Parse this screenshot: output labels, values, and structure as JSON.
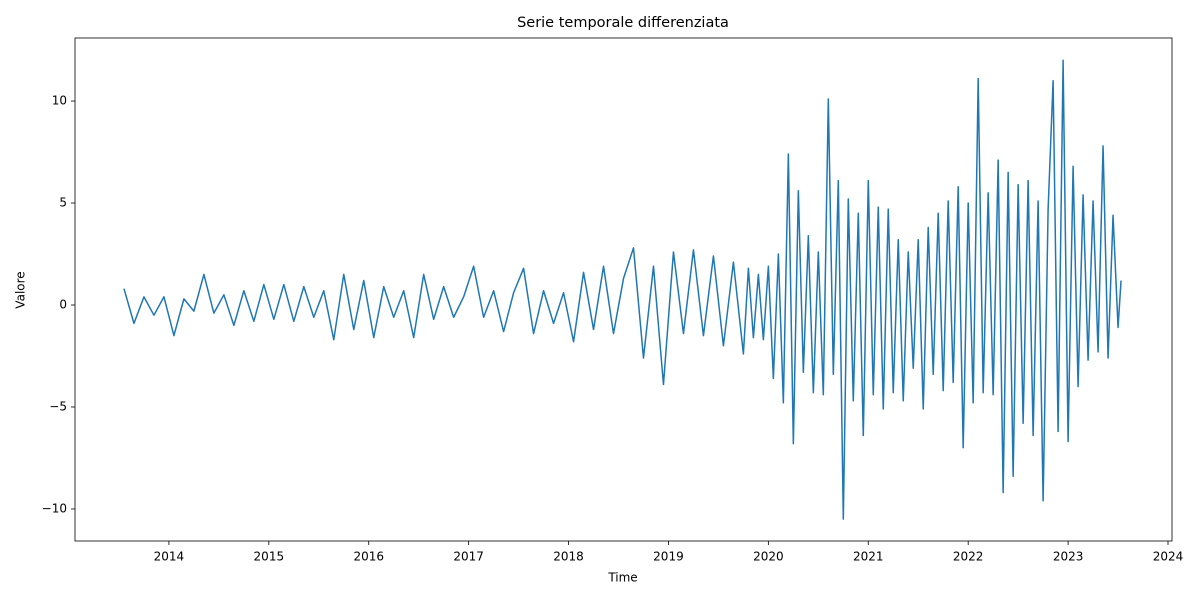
{
  "chart_data": {
    "type": "line",
    "title": "Serie temporale differenziata",
    "x_label": "Time",
    "y_label": "Valore",
    "x": [
      2013.55,
      2013.65,
      2013.75,
      2013.85,
      2013.95,
      2014.05,
      2014.15,
      2014.25,
      2014.35,
      2014.45,
      2014.55,
      2014.65,
      2014.75,
      2014.85,
      2014.95,
      2015.05,
      2015.15,
      2015.25,
      2015.35,
      2015.45,
      2015.55,
      2015.65,
      2015.75,
      2015.85,
      2015.95,
      2016.05,
      2016.15,
      2016.25,
      2016.35,
      2016.45,
      2016.55,
      2016.65,
      2016.75,
      2016.85,
      2016.95,
      2017.05,
      2017.15,
      2017.25,
      2017.35,
      2017.45,
      2017.55,
      2017.65,
      2017.75,
      2017.85,
      2017.95,
      2018.05,
      2018.15,
      2018.25,
      2018.35,
      2018.45,
      2018.55,
      2018.65,
      2018.75,
      2018.85,
      2018.95,
      2019.05,
      2019.15,
      2019.25,
      2019.35,
      2019.45,
      2019.55,
      2019.65,
      2019.75,
      2019.8,
      2019.85,
      2019.9,
      2019.95,
      2020.0,
      2020.05,
      2020.1,
      2020.15,
      2020.2,
      2020.25,
      2020.3,
      2020.35,
      2020.4,
      2020.45,
      2020.5,
      2020.55,
      2020.6,
      2020.65,
      2020.7,
      2020.75,
      2020.8,
      2020.85,
      2020.9,
      2020.95,
      2021.0,
      2021.05,
      2021.1,
      2021.15,
      2021.2,
      2021.25,
      2021.3,
      2021.35,
      2021.4,
      2021.45,
      2021.5,
      2021.55,
      2021.6,
      2021.65,
      2021.7,
      2021.75,
      2021.8,
      2021.85,
      2021.9,
      2021.95,
      2022.0,
      2022.05,
      2022.1,
      2022.15,
      2022.2,
      2022.25,
      2022.3,
      2022.35,
      2022.4,
      2022.45,
      2022.5,
      2022.55,
      2022.6,
      2022.65,
      2022.7,
      2022.75,
      2022.8,
      2022.85,
      2022.9,
      2022.95,
      2023.0,
      2023.05,
      2023.1,
      2023.15,
      2023.2,
      2023.25,
      2023.3,
      2023.35,
      2023.4,
      2023.45,
      2023.5,
      2023.53
    ],
    "series": [
      {
        "color": "#1f77b4",
        "values": [
          0.8,
          -0.9,
          0.4,
          -0.5,
          0.4,
          -1.5,
          0.3,
          -0.3,
          1.5,
          -0.4,
          0.5,
          -1.0,
          0.7,
          -0.8,
          1.0,
          -0.7,
          1.0,
          -0.8,
          0.9,
          -0.6,
          0.7,
          -1.7,
          1.5,
          -1.2,
          1.2,
          -1.6,
          0.9,
          -0.6,
          0.7,
          -1.6,
          1.5,
          -0.7,
          0.9,
          -0.6,
          0.4,
          1.9,
          -0.6,
          0.7,
          -1.3,
          0.6,
          1.8,
          -1.4,
          0.7,
          -0.9,
          0.6,
          -1.8,
          1.6,
          -1.2,
          1.9,
          -1.4,
          1.3,
          2.8,
          -2.6,
          1.9,
          -3.9,
          2.6,
          -1.4,
          2.7,
          -1.5,
          2.4,
          -2.0,
          2.1,
          -2.4,
          1.8,
          -1.6,
          1.5,
          -1.7,
          1.9,
          -3.6,
          2.5,
          -4.8,
          7.4,
          -6.8,
          5.6,
          -3.3,
          3.4,
          -4.3,
          2.6,
          -4.4,
          10.1,
          -3.4,
          6.1,
          -10.5,
          5.2,
          -4.7,
          4.5,
          -6.4,
          6.1,
          -4.4,
          4.8,
          -5.1,
          4.7,
          -4.3,
          3.2,
          -4.7,
          2.6,
          -3.1,
          3.2,
          -5.1,
          3.8,
          -3.4,
          4.5,
          -4.2,
          5.1,
          -3.8,
          5.8,
          -7.0,
          5.0,
          -4.8,
          11.1,
          -4.3,
          5.5,
          -4.4,
          7.1,
          -9.2,
          6.5,
          -8.4,
          5.9,
          -5.8,
          6.1,
          -6.4,
          5.1,
          -9.6,
          4.7,
          11.0,
          -6.2,
          12.0,
          -6.7,
          6.8,
          -4.0,
          5.4,
          -2.7,
          5.1,
          -2.3,
          7.8,
          -2.6,
          4.4,
          -1.1,
          1.2
        ]
      }
    ],
    "xlim": [
      2013.06,
      2024.04
    ],
    "xticks": [
      2014,
      2015,
      2016,
      2017,
      2018,
      2019,
      2020,
      2021,
      2022,
      2023,
      2024
    ],
    "ylim": [
      -11.57,
      13.09
    ],
    "yticks": [
      {
        "value": -10,
        "label": "−10"
      },
      {
        "value": -5,
        "label": "−5"
      },
      0,
      5,
      10
    ],
    "grid": false
  }
}
